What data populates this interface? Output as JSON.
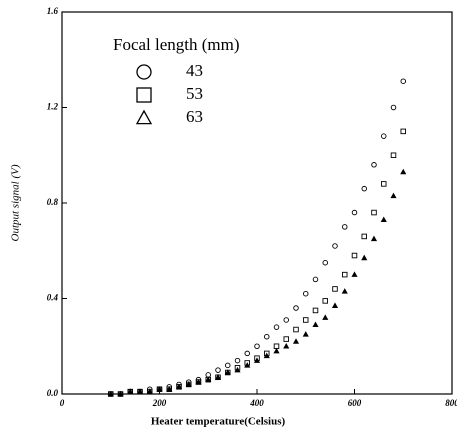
{
  "chart_data": {
    "type": "scatter",
    "xlabel": "Heater temperature(Celsius)",
    "ylabel": "Output signal (V)",
    "legend_title": "Focal length (mm)",
    "legend_position": "upper left",
    "x": [
      100,
      120,
      140,
      160,
      180,
      200,
      220,
      240,
      260,
      280,
      300,
      320,
      340,
      360,
      380,
      400,
      420,
      440,
      460,
      480,
      500,
      520,
      540,
      560,
      580,
      600,
      620,
      640,
      660,
      680,
      700
    ],
    "series": [
      {
        "name": "43",
        "color": "#000000",
        "marker": "circle",
        "values": [
          0,
          0,
          0.01,
          0.01,
          0.02,
          0.02,
          0.03,
          0.04,
          0.05,
          0.06,
          0.08,
          0.1,
          0.12,
          0.14,
          0.17,
          0.2,
          0.24,
          0.28,
          0.31,
          0.36,
          0.42,
          0.48,
          0.55,
          0.62,
          0.7,
          0.76,
          0.86,
          0.96,
          1.08,
          1.2,
          1.31
        ]
      },
      {
        "name": "53",
        "color": "#000000",
        "marker": "square",
        "values": [
          0,
          0,
          0.01,
          0.01,
          0.01,
          0.02,
          0.02,
          0.03,
          0.04,
          0.05,
          0.06,
          0.07,
          0.09,
          0.11,
          0.13,
          0.15,
          0.17,
          0.2,
          0.23,
          0.27,
          0.31,
          0.35,
          0.39,
          0.44,
          0.5,
          0.58,
          0.66,
          0.76,
          0.88,
          1.0,
          1.1
        ]
      },
      {
        "name": "63",
        "color": "#000000",
        "marker": "triangle",
        "values": [
          0,
          0,
          0.01,
          0.01,
          0.01,
          0.02,
          0.02,
          0.03,
          0.04,
          0.05,
          0.06,
          0.07,
          0.09,
          0.1,
          0.12,
          0.14,
          0.16,
          0.18,
          0.2,
          0.22,
          0.25,
          0.29,
          0.32,
          0.37,
          0.43,
          0.5,
          0.57,
          0.65,
          0.73,
          0.83,
          0.93
        ]
      }
    ],
    "xlim": [
      0,
      800
    ],
    "xticks": [
      0,
      200,
      400,
      600,
      800
    ],
    "ylim": [
      0,
      1.6
    ],
    "yticks": [
      {
        "value": 0,
        "label": "0.0"
      },
      0.4,
      0.8,
      1.2,
      1.6
    ]
  }
}
